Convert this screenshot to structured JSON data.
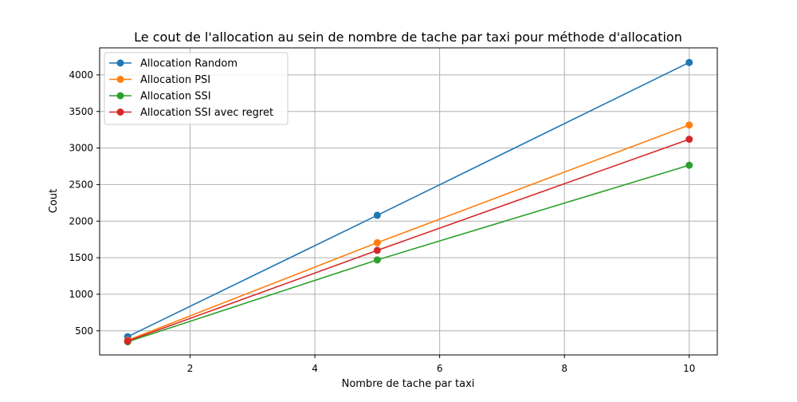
{
  "chart_data": {
    "type": "line",
    "title": "Le cout de l'allocation au sein de nombre de tache par taxi pour méthode d'allocation",
    "xlabel": "Nombre de tache par taxi",
    "ylabel": "Cout",
    "x": [
      1,
      5,
      10
    ],
    "xlim": [
      0.55,
      10.45
    ],
    "ylim": [
      170,
      4370
    ],
    "xticks": [
      2,
      4,
      6,
      8,
      10
    ],
    "yticks": [
      500,
      1000,
      1500,
      2000,
      2500,
      3000,
      3500,
      4000
    ],
    "grid": true,
    "legend_position": "top-left",
    "series": [
      {
        "name": "Allocation Random",
        "color": "#1f77b4",
        "values": [
          420,
          2080,
          4170
        ]
      },
      {
        "name": "Allocation PSI",
        "color": "#ff7f0e",
        "values": [
          370,
          1705,
          3315
        ]
      },
      {
        "name": "Allocation SSI",
        "color": "#2ca02c",
        "values": [
          350,
          1470,
          2765
        ]
      },
      {
        "name": "Allocation SSI avec regret",
        "color": "#d62728",
        "values": [
          360,
          1600,
          3120
        ]
      }
    ]
  }
}
